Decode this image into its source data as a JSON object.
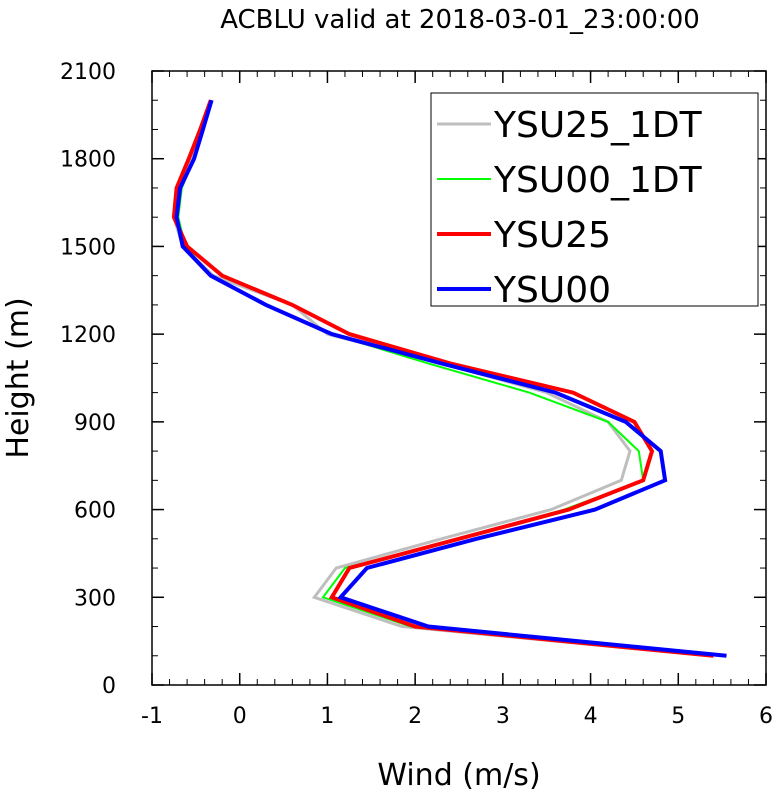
{
  "chart_data": {
    "type": "line",
    "title": "ACBLU valid at 2018-03-01_23:00:00",
    "xlabel": "Wind (m/s)",
    "ylabel": "Height (m)",
    "xlim": [
      -1,
      6
    ],
    "ylim": [
      0,
      2100
    ],
    "xticks": [
      -1,
      0,
      1,
      2,
      3,
      4,
      5,
      6
    ],
    "yticks": [
      0,
      300,
      600,
      900,
      1200,
      1500,
      1800,
      2100
    ],
    "xtick_labels": [
      "-1",
      "0",
      "1",
      "2",
      "3",
      "4",
      "5",
      "6"
    ],
    "ytick_labels": [
      "0",
      "300",
      "600",
      "900",
      "1200",
      "1500",
      "1800",
      "2100"
    ],
    "legend_position": "top-right",
    "grid": false,
    "y": [
      100,
      200,
      300,
      400,
      500,
      600,
      700,
      800,
      900,
      1000,
      1100,
      1200,
      1300,
      1400,
      1500,
      1600,
      1700,
      1800,
      1900,
      2000
    ],
    "series": [
      {
        "name": "YSU25_1DT",
        "color": "#bebebe",
        "width": 3,
        "x": [
          5.35,
          1.85,
          0.85,
          1.1,
          2.3,
          3.55,
          4.35,
          4.45,
          4.2,
          3.5,
          2.3,
          1.0,
          0.6,
          -0.3,
          -0.65,
          -0.75,
          -0.7,
          -0.55,
          -0.42,
          -0.32
        ]
      },
      {
        "name": "YSU00_1DT",
        "color": "#00ff00",
        "width": 2,
        "x": [
          5.4,
          1.95,
          0.95,
          1.2,
          2.5,
          3.7,
          4.6,
          4.55,
          4.2,
          3.3,
          2.15,
          1.05,
          0.28,
          -0.33,
          -0.62,
          -0.7,
          -0.66,
          -0.52,
          -0.42,
          -0.32
        ]
      },
      {
        "name": "YSU25",
        "color": "#ff0000",
        "width": 4,
        "x": [
          5.4,
          2.0,
          1.05,
          1.25,
          2.5,
          3.75,
          4.6,
          4.7,
          4.5,
          3.8,
          2.4,
          1.25,
          0.6,
          -0.2,
          -0.6,
          -0.75,
          -0.72,
          -0.58,
          -0.45,
          -0.33
        ]
      },
      {
        "name": "YSU00",
        "color": "#0000ff",
        "width": 4,
        "x": [
          5.55,
          2.15,
          1.15,
          1.45,
          2.7,
          4.05,
          4.85,
          4.8,
          4.4,
          3.6,
          2.3,
          1.05,
          0.3,
          -0.33,
          -0.65,
          -0.72,
          -0.68,
          -0.52,
          -0.42,
          -0.32
        ]
      }
    ]
  }
}
